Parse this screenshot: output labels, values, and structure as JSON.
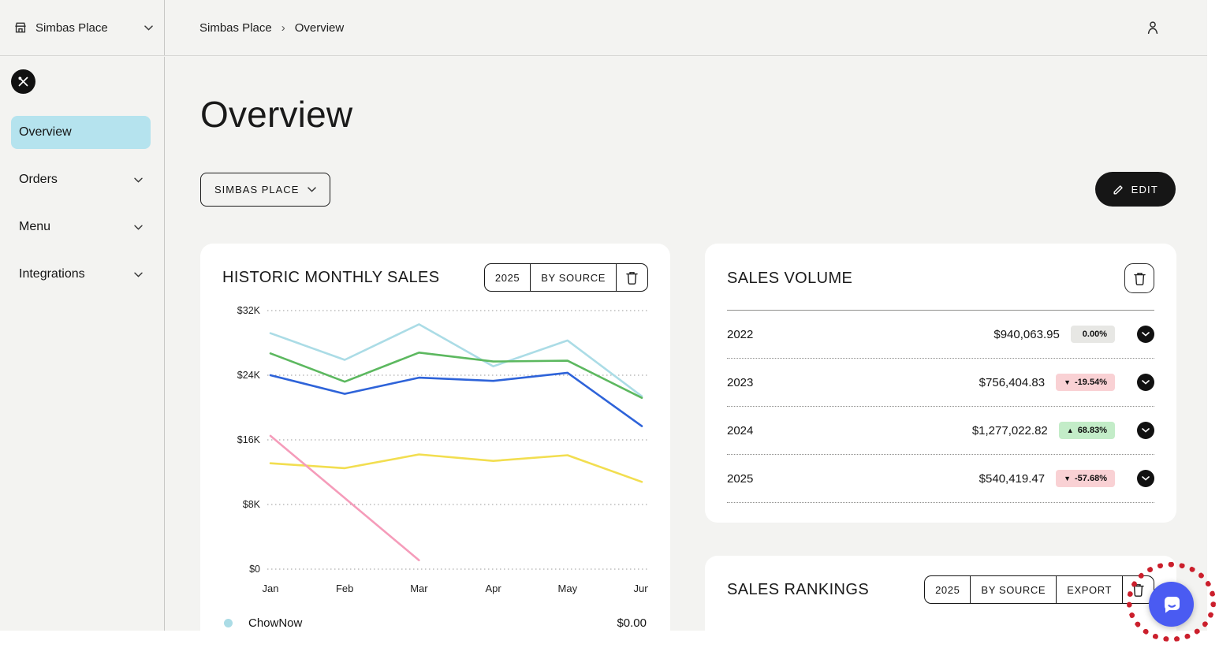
{
  "topbar": {
    "brand": "Simbas Place",
    "breadcrumb": {
      "root": "Simbas Place",
      "sep": "›",
      "current": "Overview"
    }
  },
  "sidebar": {
    "items": [
      {
        "label": "Overview",
        "active": true
      },
      {
        "label": "Orders",
        "active": false
      },
      {
        "label": "Menu",
        "active": false
      },
      {
        "label": "Integrations",
        "active": false
      }
    ]
  },
  "page": {
    "title": "Overview",
    "location_selector": "SIMBAS PLACE",
    "edit_label": "EDIT"
  },
  "chart_card": {
    "title": "HISTORIC MONTHLY SALES",
    "controls": {
      "year": "2025",
      "filter": "BY SOURCE"
    },
    "legend": [
      {
        "name": "ChowNow",
        "value": "$0.00",
        "color": "#abdce6"
      }
    ]
  },
  "chart_data": {
    "type": "line",
    "title": "HISTORIC MONTHLY SALES",
    "x": [
      "Jan",
      "Feb",
      "Mar",
      "Apr",
      "May",
      "Jun"
    ],
    "y_ticks": [
      {
        "label": "$32K",
        "value": 32
      },
      {
        "label": "$24K",
        "value": 24
      },
      {
        "label": "$16K",
        "value": 16
      },
      {
        "label": "$8K",
        "value": 8
      },
      {
        "label": "$0",
        "value": 0
      }
    ],
    "ylim": [
      0,
      33
    ],
    "unit": "USD thousands",
    "grid": "horizontal-dotted",
    "legend_position": "bottom",
    "series": [
      {
        "name": "light-blue-source",
        "color": "#abdce6",
        "values": [
          29.2,
          25.9,
          30.3,
          25.1,
          28.3,
          21.4
        ]
      },
      {
        "name": "green-source",
        "color": "#5cb85f",
        "values": [
          26.7,
          23.2,
          26.8,
          25.7,
          25.8,
          21.2
        ]
      },
      {
        "name": "blue-source",
        "color": "#2e63d9",
        "values": [
          24.0,
          21.7,
          23.7,
          23.3,
          24.3,
          17.7
        ]
      },
      {
        "name": "yellow-source",
        "color": "#f2de50",
        "values": [
          13.1,
          12.5,
          14.2,
          13.4,
          14.1,
          10.8
        ]
      },
      {
        "name": "pink-source",
        "color": "#f59cba",
        "values": [
          16.5,
          8.8,
          1.1,
          null,
          null,
          null
        ]
      }
    ],
    "visible_legend_entries": [
      {
        "name": "ChowNow",
        "value": "$0.00"
      }
    ]
  },
  "volume_card": {
    "title": "SALES VOLUME",
    "rows": [
      {
        "year": "2022",
        "amount": "$940,063.95",
        "change": "0.00%",
        "trend": "flat",
        "arrow": ""
      },
      {
        "year": "2023",
        "amount": "$756,404.83",
        "change": "-19.54%",
        "trend": "down",
        "arrow": "▼"
      },
      {
        "year": "2024",
        "amount": "$1,277,022.82",
        "change": "68.83%",
        "trend": "up",
        "arrow": "▲"
      },
      {
        "year": "2025",
        "amount": "$540,419.47",
        "change": "-57.68%",
        "trend": "down",
        "arrow": "▼"
      }
    ]
  },
  "rankings_card": {
    "title": "SALES RANKINGS",
    "controls": {
      "year": "2025",
      "filter": "BY SOURCE",
      "export": "EXPORT"
    }
  },
  "colors": {
    "accent_active_nav": "#b5e3ee",
    "edit_button": "#161616",
    "badge_flat": "#e7e7e4",
    "badge_down": "#f9d1d4",
    "badge_up": "#c3ecc8",
    "intercom_blue": "#4a5bf2",
    "annotation_red": "#cb1f2c",
    "page_background": "#f3f3f1"
  }
}
